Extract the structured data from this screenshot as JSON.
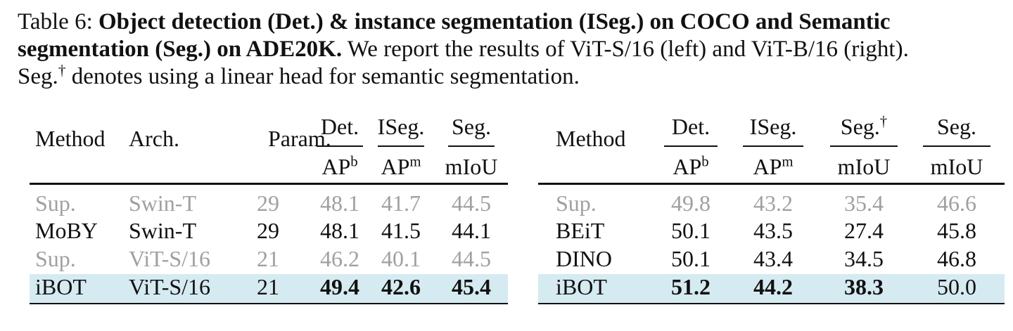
{
  "caption": {
    "lines": [
      [
        {
          "text": "Table 6: ",
          "bold": false
        },
        {
          "text": "Object detection (Det.)  & instance segmentation (ISeg.)  on COCO and Semantic",
          "bold": true
        }
      ],
      [
        {
          "text": "segmentation (Seg.)  on ADE20K.",
          "bold": true
        },
        {
          "text": " We report the results of ViT-S/16 (left) and ViT-B/16 (right).",
          "bold": false
        }
      ],
      [
        {
          "text": "Seg.",
          "bold": false
        },
        {
          "text": "†",
          "bold": false,
          "sup": true
        },
        {
          "text": " denotes using a linear head for semantic segmentation.",
          "bold": false
        }
      ]
    ]
  },
  "left_table": {
    "headers": [
      {
        "top": "Method"
      },
      {
        "top": "Arch."
      },
      {
        "top": "Param."
      },
      {
        "top": "Det.",
        "base": "AP",
        "base_sup": "b"
      },
      {
        "top": "ISeg.",
        "base": "AP",
        "base_sup": "m"
      },
      {
        "top": "Seg.",
        "base": "mIoU"
      }
    ],
    "rows": [
      {
        "cells": [
          "Sup.",
          "Swin-T",
          "29",
          "48.1",
          "41.7",
          "44.5"
        ],
        "muted": true
      },
      {
        "cells": [
          "MoBY",
          "Swin-T",
          "29",
          "48.1",
          "41.5",
          "44.1"
        ],
        "muted": false
      },
      {
        "cells": [
          "Sup.",
          "ViT-S/16",
          "21",
          "46.2",
          "40.1",
          "44.5"
        ],
        "muted": true
      },
      {
        "cells": [
          "iBOT",
          "ViT-S/16",
          "21",
          "49.4",
          "42.6",
          "45.4"
        ],
        "muted": false,
        "highlight": true,
        "bold_from": 3
      }
    ]
  },
  "right_table": {
    "headers": [
      {
        "top": "Method"
      },
      {
        "top": "Det.",
        "base": "AP",
        "base_sup": "b"
      },
      {
        "top": "ISeg.",
        "base": "AP",
        "base_sup": "m"
      },
      {
        "top": "Seg.",
        "top_sup": "†",
        "base": "mIoU"
      },
      {
        "top": "Seg.",
        "base": "mIoU"
      }
    ],
    "rows": [
      {
        "cells": [
          "Sup.",
          "49.8",
          "43.2",
          "35.4",
          "46.6"
        ],
        "muted": true
      },
      {
        "cells": [
          "BEiT",
          "50.1",
          "43.5",
          "27.4",
          "45.8"
        ],
        "muted": false
      },
      {
        "cells": [
          "DINO",
          "50.1",
          "43.4",
          "34.5",
          "46.8"
        ],
        "muted": false
      },
      {
        "cells": [
          "iBOT",
          "51.2",
          "44.2",
          "38.3",
          "50.0"
        ],
        "muted": false,
        "highlight": true,
        "bold_from": 1,
        "bold_to": 3
      }
    ]
  }
}
